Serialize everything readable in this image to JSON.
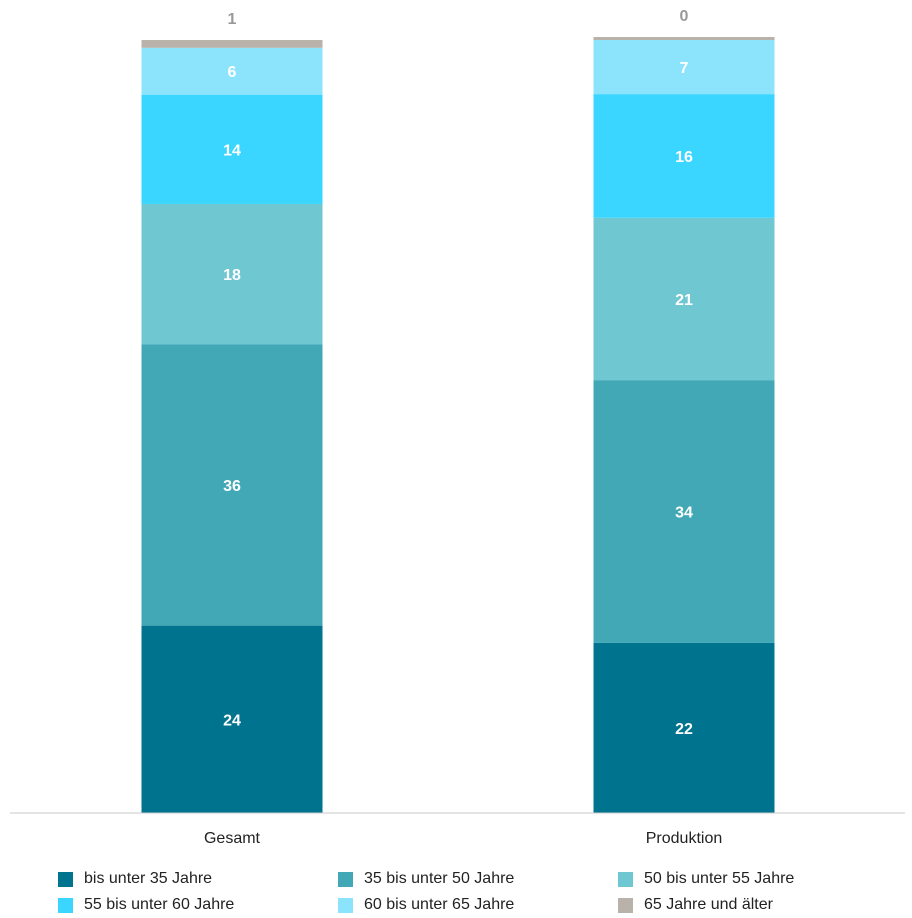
{
  "chart_data": {
    "type": "bar",
    "stacked": true,
    "categories": [
      "Gesamt",
      "Produktion"
    ],
    "series": [
      {
        "name": "bis unter 35 Jahre",
        "values": [
          24,
          22
        ],
        "color": "#00738f"
      },
      {
        "name": "35 bis unter 50 Jahre",
        "values": [
          36,
          34
        ],
        "color": "#43a8b6"
      },
      {
        "name": "50 bis unter 55 Jahre",
        "values": [
          18,
          21
        ],
        "color": "#6fc7d1"
      },
      {
        "name": "55 bis unter 60 Jahre",
        "values": [
          14,
          16
        ],
        "color": "#3ad6ff"
      },
      {
        "name": "60 bis unter 65 Jahre",
        "values": [
          6,
          7
        ],
        "color": "#8ce4fc"
      },
      {
        "name": "65 Jahre und älter",
        "values": [
          1,
          0
        ],
        "color": "#b8b2aa"
      }
    ],
    "title": "",
    "xlabel": "",
    "ylabel": "",
    "legend_position": "bottom",
    "grid": false
  }
}
